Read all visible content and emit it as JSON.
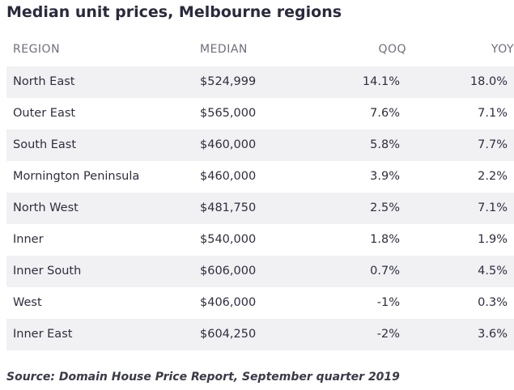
{
  "header": {
    "title": "Median unit prices, Melbourne regions"
  },
  "table": {
    "columns": [
      "REGION",
      "MEDIAN",
      "QOQ",
      "YOY"
    ],
    "rows": [
      [
        "North East",
        "$524,999",
        "14.1%",
        "18.0%"
      ],
      [
        "Outer East",
        "$565,000",
        "7.6%",
        "7.1%"
      ],
      [
        "South East",
        "$460,000",
        "5.8%",
        "7.7%"
      ],
      [
        "Mornington Peninsula",
        "$460,000",
        "3.9%",
        "2.2%"
      ],
      [
        "North West",
        "$481,750",
        "2.5%",
        "7.1%"
      ],
      [
        "Inner",
        "$540,000",
        "1.8%",
        "1.9%"
      ],
      [
        "Inner South",
        "$606,000",
        "0.7%",
        "4.5%"
      ],
      [
        "West",
        "$406,000",
        "-1%",
        "0.3%"
      ],
      [
        "Inner East",
        "$604,250",
        "-2%",
        "3.6%"
      ]
    ]
  },
  "footer": {
    "source": "Source: Domain House Price Report, September quarter 2019"
  }
}
